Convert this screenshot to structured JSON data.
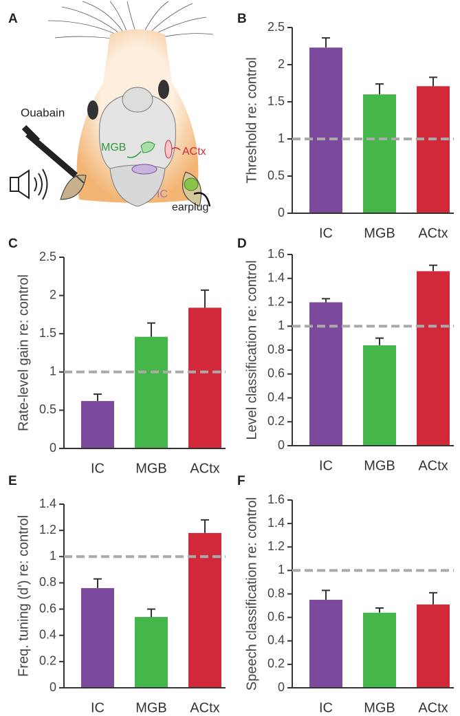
{
  "illustration": {
    "panel": "A",
    "labels": [
      "Ouabain",
      "MGB",
      "ACtx",
      "IC",
      "earplug"
    ]
  },
  "chart_data": [
    {
      "type": "bar",
      "panel": "B",
      "y_label": "Threshold re: control",
      "categories": [
        "IC",
        "MGB",
        "ACtx"
      ],
      "values": [
        2.23,
        1.6,
        1.71
      ],
      "errors": [
        0.13,
        0.14,
        0.12
      ],
      "colors": [
        "#7b4a9c",
        "#45b649",
        "#d1283a"
      ],
      "reference": 1,
      "ylim": [
        0,
        2.5
      ],
      "yticks": [
        0,
        0.5,
        1,
        1.5,
        2,
        2.5
      ]
    },
    {
      "type": "bar",
      "panel": "C",
      "y_label": "Rate-level gain re: control",
      "categories": [
        "IC",
        "MGB",
        "ACtx"
      ],
      "values": [
        0.62,
        1.46,
        1.84
      ],
      "errors": [
        0.09,
        0.18,
        0.23
      ],
      "colors": [
        "#7b4a9c",
        "#45b649",
        "#d1283a"
      ],
      "reference": 1,
      "ylim": [
        0,
        2.5
      ],
      "yticks": [
        0,
        0.5,
        1,
        1.5,
        2,
        2.5
      ]
    },
    {
      "type": "bar",
      "panel": "D",
      "y_label": "Level classification re: control",
      "categories": [
        "IC",
        "MGB",
        "ACtx"
      ],
      "values": [
        1.2,
        0.84,
        1.46
      ],
      "errors": [
        0.03,
        0.06,
        0.05
      ],
      "colors": [
        "#7b4a9c",
        "#45b649",
        "#d1283a"
      ],
      "reference": 1,
      "ylim": [
        0,
        1.6
      ],
      "yticks": [
        0,
        0.2,
        0.4,
        0.6,
        0.8,
        1,
        1.2,
        1.4,
        1.6
      ]
    },
    {
      "type": "bar",
      "panel": "E",
      "y_label": "Freq. tuning (d') re: control",
      "categories": [
        "IC",
        "MGB",
        "ACtx"
      ],
      "values": [
        0.76,
        0.54,
        1.18
      ],
      "errors": [
        0.07,
        0.06,
        0.1
      ],
      "colors": [
        "#7b4a9c",
        "#45b649",
        "#d1283a"
      ],
      "reference": 1,
      "ylim": [
        0,
        1.4
      ],
      "yticks": [
        0,
        0.2,
        0.4,
        0.6,
        0.8,
        1,
        1.2,
        1.4
      ]
    },
    {
      "type": "bar",
      "panel": "F",
      "y_label": "Speech classification re: control",
      "categories": [
        "IC",
        "MGB",
        "ACtx"
      ],
      "values": [
        0.75,
        0.64,
        0.71
      ],
      "errors": [
        0.08,
        0.04,
        0.1
      ],
      "colors": [
        "#7b4a9c",
        "#45b649",
        "#d1283a"
      ],
      "reference": 1,
      "ylim": [
        0,
        1.6
      ],
      "yticks": [
        0,
        0.2,
        0.4,
        0.6,
        0.8,
        1,
        1.2,
        1.4,
        1.6
      ]
    }
  ]
}
